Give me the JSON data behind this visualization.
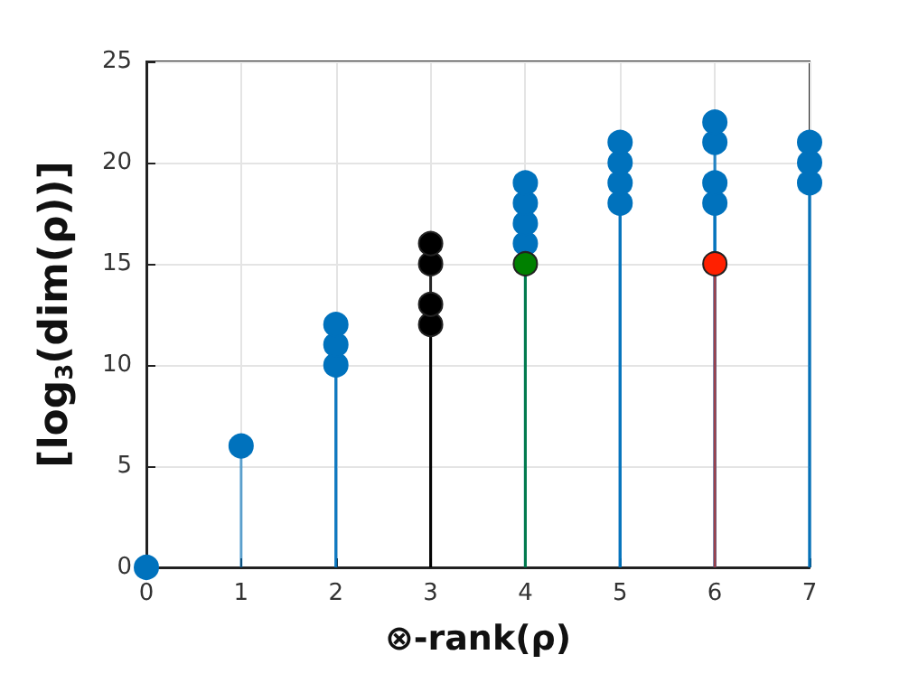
{
  "chart_data": {
    "type": "lollipop",
    "xlabel": "⊗-rank(ρ)",
    "ylabel": "[log$_{3}$(dim(ρ))]",
    "series": [
      {
        "color": "#0072bd",
        "x": [
          0,
          1,
          2,
          2,
          2,
          4,
          4,
          4,
          4,
          5,
          5,
          5,
          5,
          6,
          6,
          6,
          6,
          7,
          7,
          7
        ],
        "values": [
          0,
          6,
          10,
          11,
          12,
          16,
          17,
          18,
          19,
          18,
          19,
          20,
          21,
          18,
          19,
          21,
          22,
          19,
          20,
          21
        ]
      },
      {
        "color": "#000000",
        "x": [
          3,
          3,
          3,
          3
        ],
        "values": [
          12,
          13,
          15,
          16
        ]
      },
      {
        "color": "#008000",
        "x": [
          4
        ],
        "values": [
          15
        ]
      },
      {
        "color": "#ff2000",
        "x": [
          6
        ],
        "values": [
          15
        ]
      }
    ],
    "xlim": [
      0,
      7
    ],
    "xticks": [
      0,
      1,
      2,
      3,
      4,
      5,
      6,
      7
    ],
    "ylim": [
      0,
      25
    ],
    "yticks": [
      0,
      5,
      10,
      15,
      20,
      25
    ],
    "grid": true,
    "marker": "circle"
  }
}
